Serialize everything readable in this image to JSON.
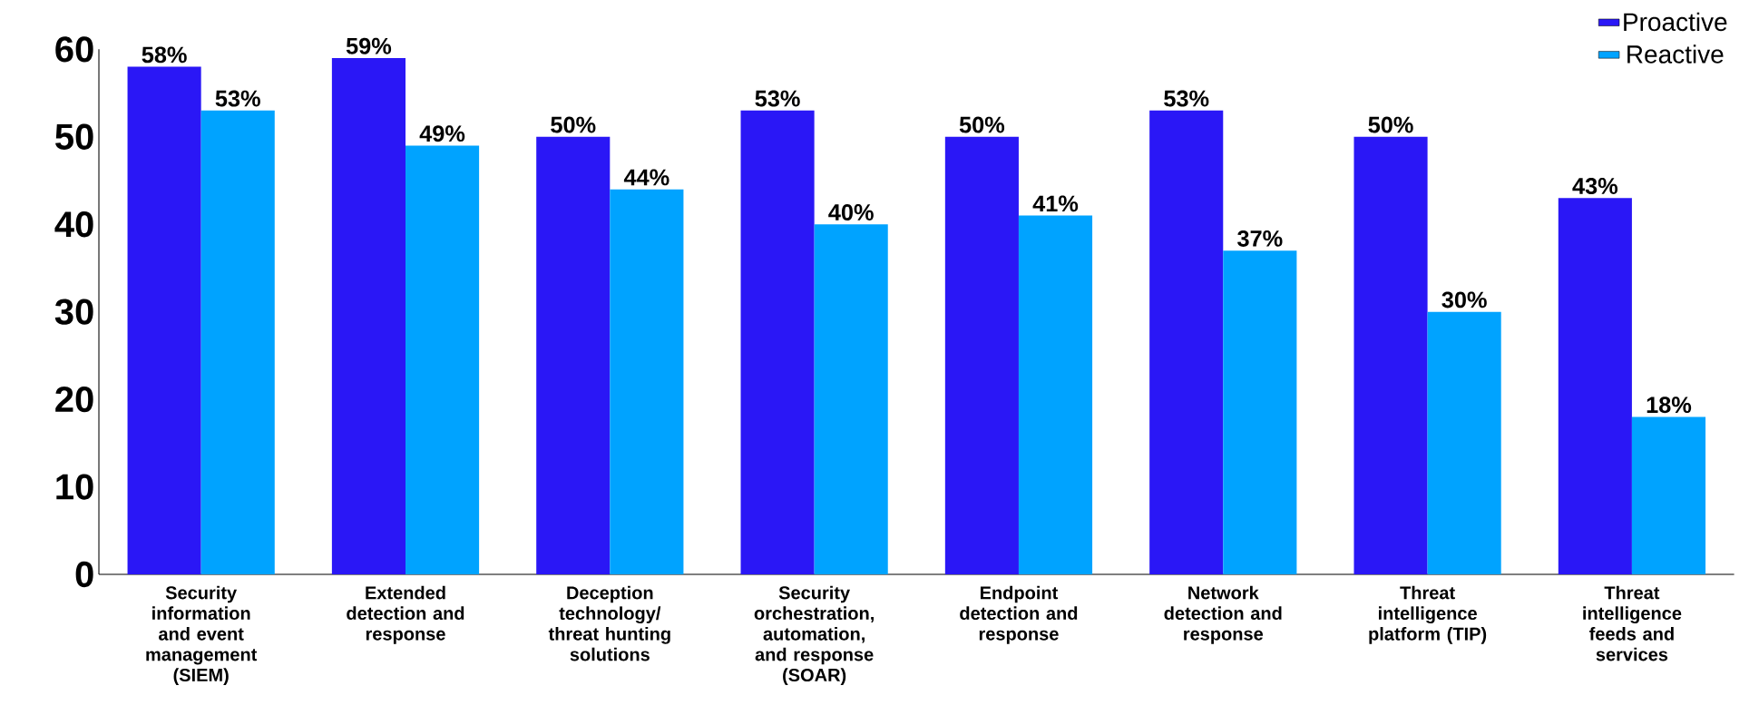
{
  "chart_data": {
    "type": "bar",
    "categories": [
      "Security information and event management (SIEM)",
      "Extended detection and response",
      "Deception technology/ threat hunting solutions",
      "Security orchestration, automation, and response (SOAR)",
      "Endpoint detection and response",
      "Network detection and response",
      "Threat intelligence platform (TIP)",
      "Threat intelligence feeds and services"
    ],
    "series": [
      {
        "name": "Proactive",
        "color": "#2a17f6",
        "values": [
          58,
          59,
          50,
          53,
          50,
          53,
          50,
          43
        ],
        "value_labels": [
          "58%",
          "59%",
          "50%",
          "53%",
          "50%",
          "53%",
          "50%",
          "43%"
        ]
      },
      {
        "name": "Reactive",
        "color": "#00a3ff",
        "values": [
          53,
          49,
          44,
          40,
          41,
          37,
          30,
          18
        ],
        "value_labels": [
          "53%",
          "49%",
          "44%",
          "40%",
          "41%",
          "37%",
          "30%",
          "18%"
        ]
      }
    ],
    "ylim": [
      0,
      60
    ],
    "yticks": [
      0,
      10,
      20,
      30,
      40,
      50,
      60
    ],
    "legend": "top right"
  }
}
